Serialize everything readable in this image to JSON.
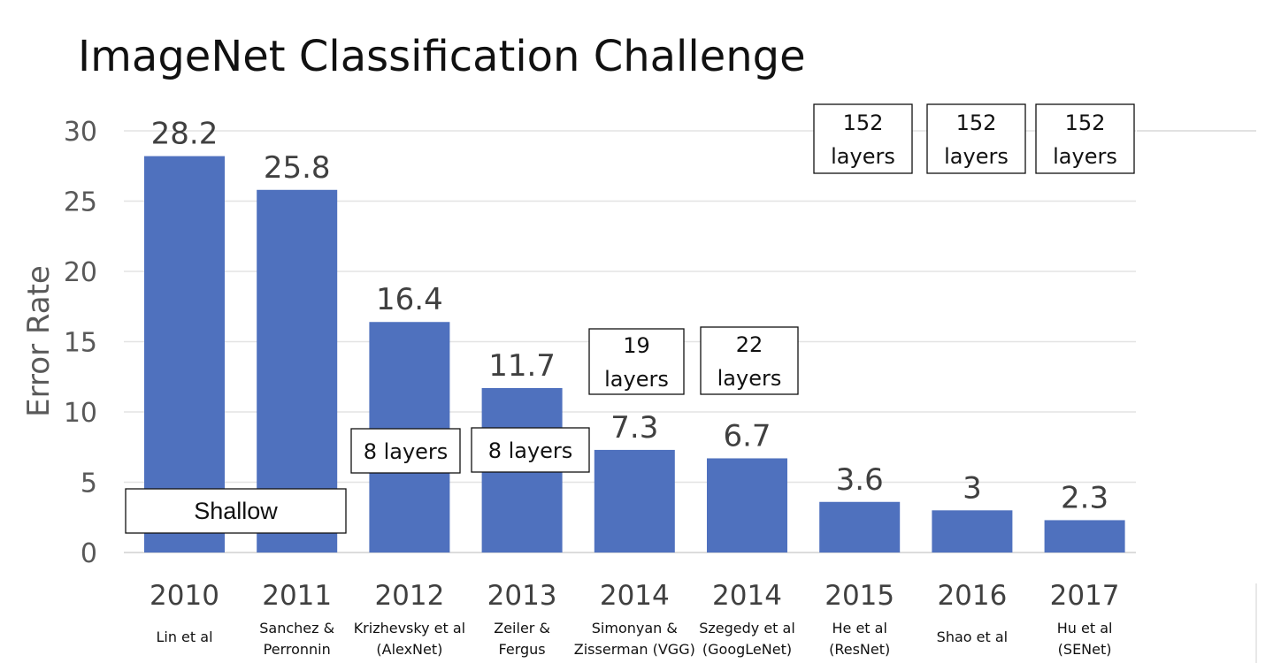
{
  "chart_data": {
    "type": "bar",
    "title": "ImageNet Classification Challenge",
    "ylabel": "Error Rate",
    "xlabel": "",
    "ylim": [
      0,
      30
    ],
    "yticks": [
      0,
      5,
      10,
      15,
      20,
      25,
      30
    ],
    "grid": true,
    "bar_color": "#4f71be",
    "categories": [
      {
        "year": "2010",
        "author": [
          "Lin et al"
        ]
      },
      {
        "year": "2011",
        "author": [
          "Sanchez &",
          "Perronnin"
        ]
      },
      {
        "year": "2012",
        "author": [
          "Krizhevsky et al",
          "(AlexNet)"
        ]
      },
      {
        "year": "2013",
        "author": [
          "Zeiler &",
          "Fergus"
        ]
      },
      {
        "year": "2014",
        "author": [
          "Simonyan &",
          "Zisserman (VGG)"
        ]
      },
      {
        "year": "2014",
        "author": [
          "Szegedy et al",
          "(GoogLeNet)"
        ]
      },
      {
        "year": "2015",
        "author": [
          "He et al",
          "(ResNet)"
        ]
      },
      {
        "year": "2016",
        "author": [
          "Shao et al"
        ]
      },
      {
        "year": "2017",
        "author": [
          "Hu et al",
          "(SENet)"
        ]
      }
    ],
    "values": [
      28.2,
      25.8,
      16.4,
      11.7,
      7.3,
      6.7,
      3.6,
      3,
      2.3
    ],
    "value_labels": [
      "28.2",
      "25.8",
      "16.4",
      "11.7",
      "7.3",
      "6.7",
      "3.6",
      "3",
      "2.3"
    ],
    "annotations": [
      {
        "lines": [
          "Shallow"
        ],
        "bars": [
          0,
          1
        ]
      },
      {
        "lines": [
          "8 layers"
        ],
        "bars": [
          2
        ]
      },
      {
        "lines": [
          "8 layers"
        ],
        "bars": [
          3
        ]
      },
      {
        "lines": [
          "19",
          "layers"
        ],
        "bars": [
          4
        ]
      },
      {
        "lines": [
          "22",
          "layers"
        ],
        "bars": [
          5
        ]
      },
      {
        "lines": [
          "152",
          "layers"
        ],
        "bars": [
          6
        ]
      },
      {
        "lines": [
          "152",
          "layers"
        ],
        "bars": [
          7
        ]
      },
      {
        "lines": [
          "152",
          "layers"
        ],
        "bars": [
          8
        ]
      }
    ]
  }
}
